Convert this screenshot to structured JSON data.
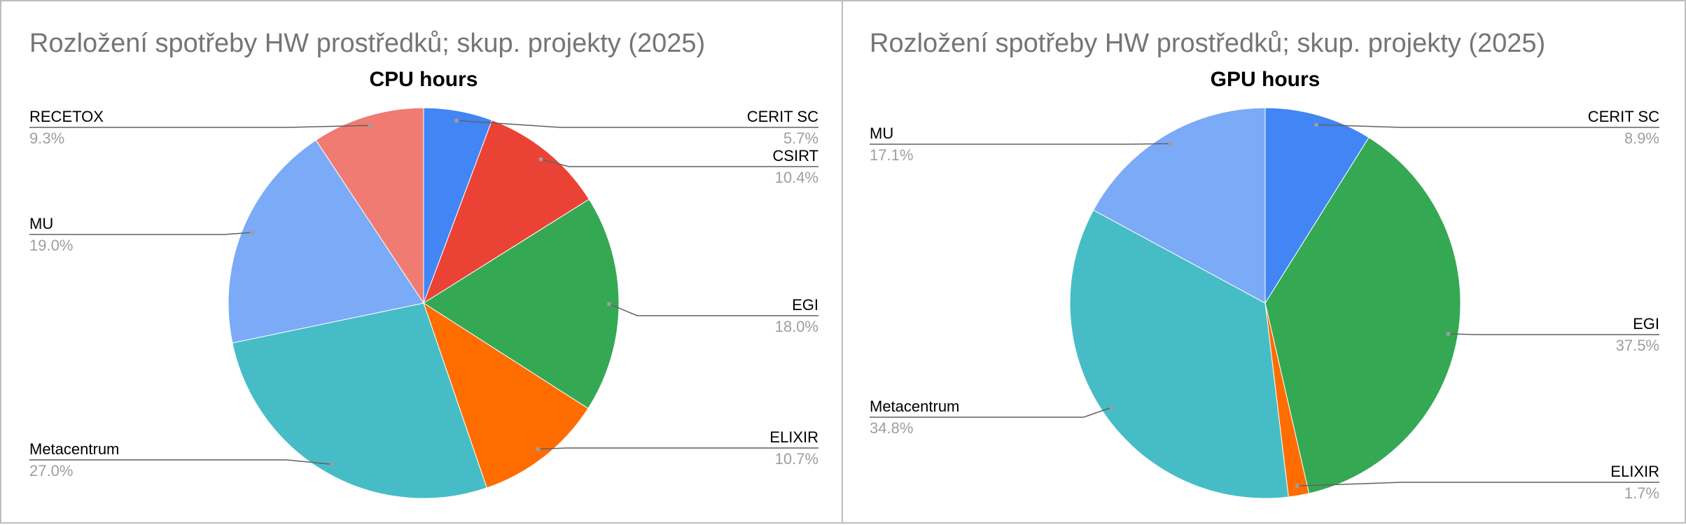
{
  "chart_data": [
    {
      "type": "pie",
      "title": "Rozložení spotřeby HW prostředků; skup. projekty (2025)",
      "subtitle": "CPU hours",
      "slices": [
        {
          "label": "CERIT SC",
          "value": 5.7,
          "display": "5.7%",
          "color": "#4285f4"
        },
        {
          "label": "CSIRT",
          "value": 10.4,
          "display": "10.4%",
          "color": "#ea4335"
        },
        {
          "label": "EGI",
          "value": 18.0,
          "display": "18.0%",
          "color": "#34a853"
        },
        {
          "label": "ELIXIR",
          "value": 10.7,
          "display": "10.7%",
          "color": "#ff6d01"
        },
        {
          "label": "Metacentrum",
          "value": 27.0,
          "display": "27.0%",
          "color": "#46bdc6"
        },
        {
          "label": "MU",
          "value": 19.0,
          "display": "19.0%",
          "color": "#7baaf7"
        },
        {
          "label": "RECETOX",
          "value": 9.3,
          "display": "9.3%",
          "color": "#f07b72"
        }
      ]
    },
    {
      "type": "pie",
      "title": "Rozložení spotřeby HW prostředků; skup. projekty (2025)",
      "subtitle": "GPU hours",
      "slices": [
        {
          "label": "CERIT SC",
          "value": 8.9,
          "display": "8.9%",
          "color": "#4285f4"
        },
        {
          "label": "EGI",
          "value": 37.5,
          "display": "37.5%",
          "color": "#34a853"
        },
        {
          "label": "ELIXIR",
          "value": 1.7,
          "display": "1.7%",
          "color": "#ff6d01"
        },
        {
          "label": "Metacentrum",
          "value": 34.8,
          "display": "34.8%",
          "color": "#46bdc6"
        },
        {
          "label": "MU",
          "value": 17.1,
          "display": "17.1%",
          "color": "#7baaf7"
        }
      ]
    }
  ]
}
